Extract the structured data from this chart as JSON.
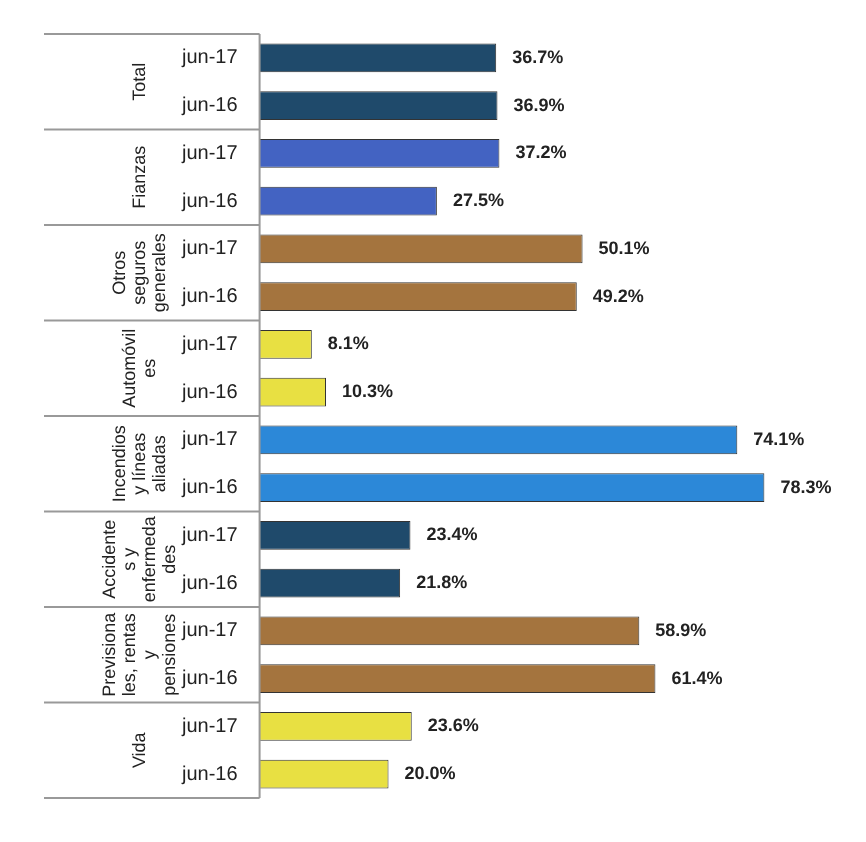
{
  "chart_data": {
    "type": "bar",
    "orientation": "horizontal",
    "categories": [
      "jun-17",
      "jun-16",
      "jun-17",
      "jun-16",
      "jun-17",
      "jun-16",
      "jun-17",
      "jun-16",
      "jun-17",
      "jun-16",
      "jun-17",
      "jun-16",
      "jun-17",
      "jun-16",
      "jun-17",
      "jun-16"
    ],
    "values": [
      36.7,
      36.9,
      37.2,
      27.5,
      50.1,
      49.2,
      8.1,
      10.3,
      74.1,
      78.3,
      23.4,
      21.8,
      58.9,
      61.4,
      23.6,
      20.0
    ],
    "value_labels": [
      "36.7%",
      "36.9%",
      "37.2%",
      "27.5%",
      "50.1%",
      "49.2%",
      "8.1%",
      "10.3%",
      "74.1%",
      "78.3%",
      "23.4%",
      "21.8%",
      "58.9%",
      "61.4%",
      "23.6%",
      "20.0%"
    ],
    "colors": [
      "#1f4a6b",
      "#1f4a6b",
      "#4363c2",
      "#4363c2",
      "#a4743e",
      "#a4743e",
      "#e8e042",
      "#e8e042",
      "#2c88d8",
      "#2c88d8",
      "#1f4a6b",
      "#1f4a6b",
      "#a4743e",
      "#a4743e",
      "#e8e042",
      "#e8e042"
    ],
    "annotations": [
      "Total",
      "Fianzas",
      "Otros seguros generales",
      "Automóviles",
      "Incendios y líneas aliadas",
      "Accidentes y enfermedades",
      "Previsionales, rentas y pensiones",
      "Vida"
    ],
    "grid": false,
    "legend": false
  }
}
